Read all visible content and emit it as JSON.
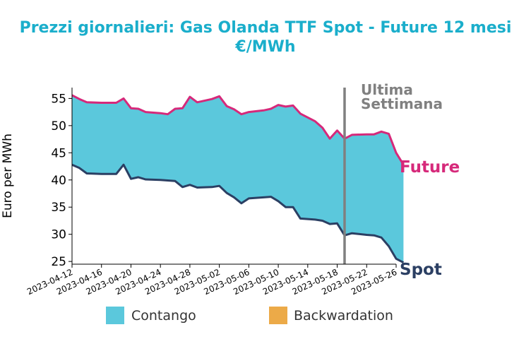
{
  "chart_data": {
    "type": "area",
    "title": "Prezzi giornalieri: Gas Olanda TTF Spot - Future 12 mesi",
    "subtitle": "€/MWh",
    "ylabel": "Euro per MWh",
    "xlabel": "",
    "ylim": [
      24.5,
      57
    ],
    "yticks": [
      25,
      30,
      35,
      40,
      45,
      50,
      55
    ],
    "xticks": [
      "2023-04-12",
      "2023-04-16",
      "2023-04-20",
      "2023-04-24",
      "2023-04-28",
      "2023-05-02",
      "2023-05-06",
      "2023-05-10",
      "2023-05-14",
      "2023-05-18",
      "2023-05-22",
      "2023-05-26"
    ],
    "x_start": "2023-04-12",
    "x_end": "2023-05-26",
    "grid": false,
    "legend_position": "bottom",
    "vline": {
      "date": "2023-05-19",
      "label_line1": "Ultima",
      "label_line2": "Settimana",
      "color": "#808080"
    },
    "series": [
      {
        "name": "Future",
        "color": "#d6297a",
        "points": [
          [
            "2023-04-12",
            55.6
          ],
          [
            "2023-04-13",
            54.9
          ],
          [
            "2023-04-14",
            54.3
          ],
          [
            "2023-04-16",
            54.2
          ],
          [
            "2023-04-17",
            54.2
          ],
          [
            "2023-04-18",
            54.2
          ],
          [
            "2023-04-19",
            55.0
          ],
          [
            "2023-04-20",
            53.2
          ],
          [
            "2023-04-21",
            53.1
          ],
          [
            "2023-04-22",
            52.5
          ],
          [
            "2023-04-24",
            52.3
          ],
          [
            "2023-04-25",
            52.1
          ],
          [
            "2023-04-26",
            53.1
          ],
          [
            "2023-04-27",
            53.2
          ],
          [
            "2023-04-28",
            55.3
          ],
          [
            "2023-04-29",
            54.3
          ],
          [
            "2023-05-01",
            54.9
          ],
          [
            "2023-05-02",
            55.4
          ],
          [
            "2023-05-03",
            53.6
          ],
          [
            "2023-05-04",
            53.0
          ],
          [
            "2023-05-05",
            52.1
          ],
          [
            "2023-05-06",
            52.5
          ],
          [
            "2023-05-08",
            52.8
          ],
          [
            "2023-05-09",
            53.1
          ],
          [
            "2023-05-10",
            53.8
          ],
          [
            "2023-05-11",
            53.5
          ],
          [
            "2023-05-12",
            53.7
          ],
          [
            "2023-05-13",
            52.2
          ],
          [
            "2023-05-15",
            50.8
          ],
          [
            "2023-05-16",
            49.6
          ],
          [
            "2023-05-17",
            47.6
          ],
          [
            "2023-05-18",
            49.1
          ],
          [
            "2023-05-19",
            47.6
          ],
          [
            "2023-05-20",
            48.3
          ],
          [
            "2023-05-22",
            48.4
          ],
          [
            "2023-05-23",
            48.4
          ],
          [
            "2023-05-24",
            48.9
          ],
          [
            "2023-05-25",
            48.5
          ],
          [
            "2023-05-26",
            45.0
          ],
          [
            "2023-05-27",
            42.8
          ]
        ]
      },
      {
        "name": "Spot",
        "color": "#2b3f63",
        "points": [
          [
            "2023-04-12",
            42.8
          ],
          [
            "2023-04-13",
            42.2
          ],
          [
            "2023-04-14",
            41.2
          ],
          [
            "2023-04-16",
            41.1
          ],
          [
            "2023-04-17",
            41.1
          ],
          [
            "2023-04-18",
            41.1
          ],
          [
            "2023-04-19",
            42.8
          ],
          [
            "2023-04-20",
            40.2
          ],
          [
            "2023-04-21",
            40.5
          ],
          [
            "2023-04-22",
            40.1
          ],
          [
            "2023-04-24",
            40.0
          ],
          [
            "2023-04-25",
            39.9
          ],
          [
            "2023-04-26",
            39.8
          ],
          [
            "2023-04-27",
            38.7
          ],
          [
            "2023-04-28",
            39.1
          ],
          [
            "2023-04-29",
            38.6
          ],
          [
            "2023-05-01",
            38.7
          ],
          [
            "2023-05-02",
            38.9
          ],
          [
            "2023-05-03",
            37.6
          ],
          [
            "2023-05-04",
            36.8
          ],
          [
            "2023-05-05",
            35.7
          ],
          [
            "2023-05-06",
            36.6
          ],
          [
            "2023-05-08",
            36.8
          ],
          [
            "2023-05-09",
            36.9
          ],
          [
            "2023-05-10",
            36.1
          ],
          [
            "2023-05-11",
            35.0
          ],
          [
            "2023-05-12",
            35.0
          ],
          [
            "2023-05-13",
            32.9
          ],
          [
            "2023-05-15",
            32.7
          ],
          [
            "2023-05-16",
            32.5
          ],
          [
            "2023-05-17",
            31.9
          ],
          [
            "2023-05-18",
            32.0
          ],
          [
            "2023-05-19",
            29.8
          ],
          [
            "2023-05-20",
            30.2
          ],
          [
            "2023-05-22",
            29.9
          ],
          [
            "2023-05-23",
            29.8
          ],
          [
            "2023-05-24",
            29.4
          ],
          [
            "2023-05-25",
            27.8
          ],
          [
            "2023-05-26",
            25.5
          ],
          [
            "2023-05-27",
            24.8
          ]
        ]
      }
    ],
    "fills": [
      {
        "name": "Contango",
        "color": "#5bc8dc"
      },
      {
        "name": "Backwardation",
        "color": "#ecaa48"
      }
    ]
  }
}
